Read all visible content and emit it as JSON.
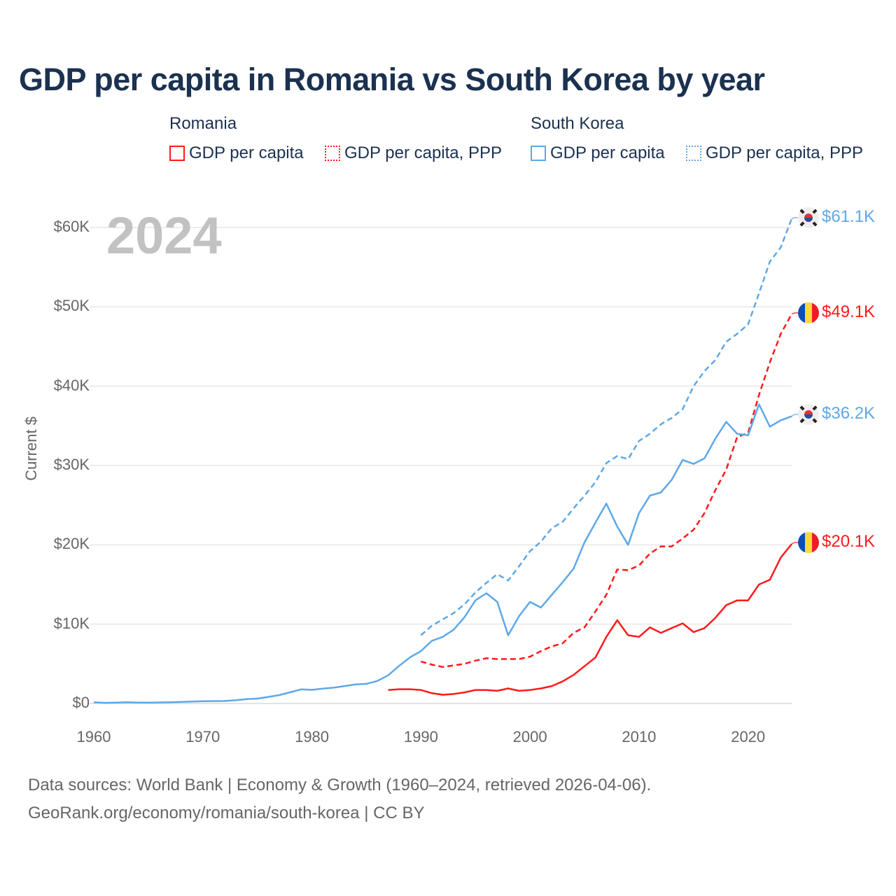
{
  "chart_data": {
    "type": "line",
    "title": "GDP per capita in Romania vs South Korea by year",
    "ylabel": "Current $",
    "xlabel": "",
    "xlim": [
      1960,
      2024
    ],
    "ylim": [
      0,
      60000
    ],
    "grid": true,
    "year_watermark": "2024",
    "x_ticks": [
      "1960",
      "1970",
      "1980",
      "1990",
      "2000",
      "2010",
      "2020"
    ],
    "y_ticks": [
      "$0",
      "$10K",
      "$20K",
      "$30K",
      "$40K",
      "$50K",
      "$60K"
    ],
    "legend": {
      "placement": "top",
      "groups": [
        {
          "name": "Romania",
          "items": [
            "GDP per capita",
            "GDP per capita, PPP"
          ]
        },
        {
          "name": "South Korea",
          "items": [
            "GDP per capita",
            "GDP per capita, PPP"
          ]
        }
      ]
    },
    "series": [
      {
        "name": "South Korea GDP per capita, PPP",
        "country": "South Korea",
        "style": "dashed",
        "color": "#5ea8e8",
        "end_label": "$61.1K",
        "start_year": 1990,
        "values": [
          8.6,
          9.8,
          10.6,
          11.4,
          12.5,
          14.0,
          15.2,
          16.3,
          15.5,
          17.3,
          19.2,
          20.4,
          22.1,
          22.9,
          24.6,
          26.2,
          27.9,
          30.3,
          31.2,
          30.8,
          33.1,
          34.0,
          35.2,
          36.0,
          37.1,
          40.0,
          41.9,
          43.3,
          45.6,
          46.6,
          47.8,
          51.7,
          55.7,
          57.5,
          61.1
        ]
      },
      {
        "name": "Romania GDP per capita, PPP",
        "country": "Romania",
        "style": "dashed",
        "color": "#ff1a1a",
        "end_label": "$49.1K",
        "start_year": 1990,
        "values": [
          5.3,
          4.9,
          4.6,
          4.8,
          5.0,
          5.4,
          5.7,
          5.6,
          5.6,
          5.6,
          5.9,
          6.6,
          7.2,
          7.6,
          8.9,
          9.6,
          11.6,
          13.7,
          16.9,
          16.8,
          17.4,
          18.9,
          19.8,
          19.8,
          20.8,
          21.9,
          24.0,
          26.9,
          29.5,
          33.6,
          34.1,
          38.9,
          43.0,
          46.6,
          49.1
        ]
      },
      {
        "name": "South Korea GDP per capita",
        "country": "South Korea",
        "style": "solid",
        "color": "#5ea8e8",
        "end_label": "$36.2K",
        "start_year": 1960,
        "values": [
          0.16,
          0.09,
          0.11,
          0.15,
          0.12,
          0.11,
          0.13,
          0.16,
          0.2,
          0.24,
          0.28,
          0.3,
          0.32,
          0.41,
          0.56,
          0.62,
          0.83,
          1.06,
          1.41,
          1.78,
          1.72,
          1.88,
          1.99,
          2.2,
          2.41,
          2.48,
          2.84,
          3.56,
          4.75,
          5.82,
          6.6,
          7.9,
          8.4,
          9.3,
          10.9,
          13.0,
          13.9,
          12.8,
          8.6,
          11.0,
          12.8,
          12.1,
          13.7,
          15.3,
          17.0,
          20.3,
          22.8,
          25.2,
          22.3,
          20.0,
          24.0,
          26.2,
          26.6,
          28.2,
          30.7,
          30.2,
          30.9,
          33.4,
          35.5,
          34.0,
          33.8,
          37.7,
          34.9,
          35.7,
          36.2
        ]
      },
      {
        "name": "Romania GDP per capita",
        "country": "Romania",
        "style": "solid",
        "color": "#ff1a1a",
        "end_label": "$20.1K",
        "start_year": 1987,
        "values": [
          1.7,
          1.8,
          1.8,
          1.7,
          1.3,
          1.1,
          1.2,
          1.4,
          1.7,
          1.7,
          1.6,
          1.9,
          1.6,
          1.7,
          1.9,
          2.2,
          2.8,
          3.6,
          4.7,
          5.8,
          8.4,
          10.5,
          8.6,
          8.4,
          9.6,
          8.9,
          9.5,
          10.1,
          9.0,
          9.5,
          10.8,
          12.4,
          13.0,
          13.0,
          15.0,
          15.6,
          18.4,
          20.1
        ]
      }
    ],
    "value_unit": "thousand USD"
  },
  "footer": {
    "line1": "Data sources: World Bank | Economy & Growth (1960–2024, retrieved 2026-04-06).",
    "line2": "GeoRank.org/economy/romania/south-korea | CC BY"
  },
  "colors": {
    "romania": "#ff1a1a",
    "south_korea": "#5ea8e8",
    "title": "#1b3150"
  }
}
